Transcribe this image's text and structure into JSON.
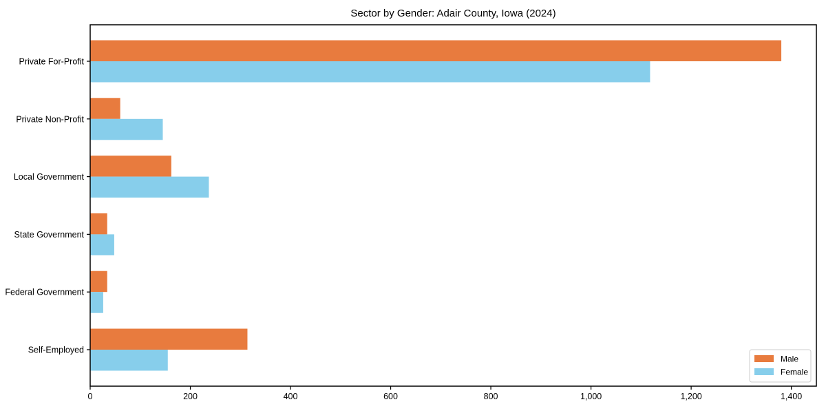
{
  "figure": {
    "background": "#ffffff"
  },
  "chart_data": {
    "type": "bar",
    "orientation": "horizontal",
    "title": "Sector by Gender: Adair County, Iowa (2024)",
    "categories": [
      "Private For-Profit",
      "Private Non-Profit",
      "Local Government",
      "State Government",
      "Federal Government",
      "Self-Employed"
    ],
    "series": [
      {
        "name": "Male",
        "color": "#E87B3E",
        "values": [
          1380,
          60,
          162,
          34,
          34,
          314
        ]
      },
      {
        "name": "Female",
        "color": "#87CEEB",
        "values": [
          1118,
          145,
          237,
          48,
          26,
          155
        ]
      }
    ],
    "xlabel": "",
    "ylabel": "",
    "xlim": [
      0,
      1450
    ],
    "xticks": {
      "values": [
        0,
        200,
        400,
        600,
        800,
        1000,
        1200,
        1400
      ],
      "labels": [
        "0",
        "200",
        "400",
        "600",
        "800",
        "1,000",
        "1,200",
        "1,400"
      ]
    },
    "legend": {
      "position": "lower right",
      "entries": [
        "Male",
        "Female"
      ],
      "border_color": "#cccccc",
      "background": "#ffffff"
    },
    "grid": false,
    "axis_color": "#000000",
    "text_color": "#000000"
  }
}
